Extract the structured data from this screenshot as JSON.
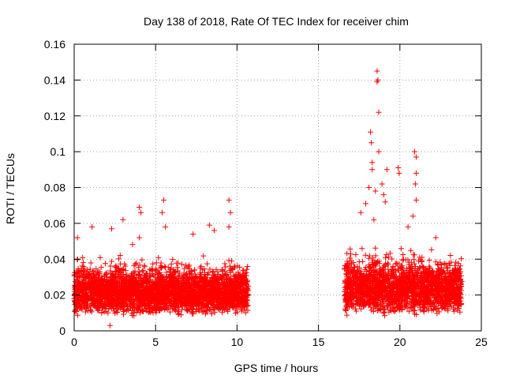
{
  "chart_data": {
    "type": "scatter",
    "title": "Day 138 of 2018, Rate Of TEC Index for receiver chim",
    "xlabel": "GPS time / hours",
    "ylabel": "ROTI / TECUs",
    "xlim": [
      0,
      25
    ],
    "ylim": [
      0,
      0.16
    ],
    "x_ticks": [
      0,
      5,
      10,
      15,
      20,
      25
    ],
    "x_tick_labels": [
      "0",
      "5",
      "10",
      "15",
      "20",
      "25"
    ],
    "y_ticks": [
      0,
      0.02,
      0.04,
      0.06,
      0.08,
      0.1,
      0.12,
      0.14,
      0.16
    ],
    "y_tick_labels": [
      "0",
      "0.02",
      "0.04",
      "0.06",
      "0.08",
      "0.1",
      "0.12",
      "0.14",
      "0.16"
    ],
    "grid": true,
    "marker": "+",
    "series": [
      {
        "name": "ROTI",
        "color": "#ff0000",
        "segments": [
          {
            "x_range": [
              0.0,
              10.7
            ],
            "typical_range": [
              0.008,
              0.04
            ],
            "notable_points": [
              [
                0.2,
                0.052
              ],
              [
                1.1,
                0.058
              ],
              [
                2.3,
                0.057
              ],
              [
                3.0,
                0.062
              ],
              [
                4.0,
                0.069
              ],
              [
                4.1,
                0.066
              ],
              [
                4.0,
                0.052
              ],
              [
                5.5,
                0.073
              ],
              [
                5.4,
                0.066
              ],
              [
                5.6,
                0.058
              ],
              [
                7.3,
                0.054
              ],
              [
                8.3,
                0.059
              ],
              [
                8.6,
                0.056
              ],
              [
                9.5,
                0.073
              ],
              [
                9.6,
                0.066
              ],
              [
                9.5,
                0.058
              ],
              [
                2.2,
                0.003
              ]
            ]
          },
          {
            "x_range": [
              16.6,
              23.8
            ],
            "typical_range": [
              0.008,
              0.045
            ],
            "notable_points": [
              [
                18.6,
                0.145
              ],
              [
                18.65,
                0.14
              ],
              [
                18.6,
                0.139
              ],
              [
                18.7,
                0.122
              ],
              [
                18.2,
                0.111
              ],
              [
                18.25,
                0.105
              ],
              [
                18.7,
                0.1
              ],
              [
                20.9,
                0.1
              ],
              [
                21.0,
                0.097
              ],
              [
                18.3,
                0.094
              ],
              [
                18.3,
                0.09
              ],
              [
                19.2,
                0.09
              ],
              [
                19.9,
                0.091
              ],
              [
                19.95,
                0.088
              ],
              [
                21.0,
                0.088
              ],
              [
                20.95,
                0.082
              ],
              [
                18.9,
                0.082
              ],
              [
                18.1,
                0.08
              ],
              [
                17.9,
                0.071
              ],
              [
                18.5,
                0.078
              ],
              [
                19.1,
                0.072
              ],
              [
                19.0,
                0.076
              ],
              [
                21.0,
                0.073
              ],
              [
                17.6,
                0.066
              ],
              [
                18.4,
                0.062
              ],
              [
                20.8,
                0.064
              ],
              [
                20.5,
                0.058
              ],
              [
                22.2,
                0.052
              ]
            ]
          }
        ]
      }
    ]
  }
}
